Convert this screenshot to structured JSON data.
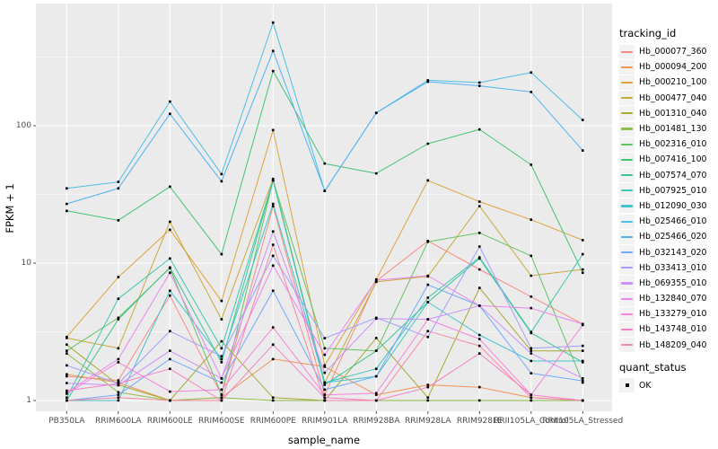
{
  "figure": {
    "background": "#FFFFFF",
    "panel_background": "#EBEBEB",
    "grid_color": "#FFFFFF",
    "tick_color": "#333333",
    "tick_label_color": "#4D4D4D",
    "point_color": "#000000",
    "legend_key_background": "#F2F2F2"
  },
  "chart_data": {
    "type": "line",
    "title": "",
    "xlabel": "sample_name",
    "ylabel": "FPKM + 1",
    "y_scale": "log10",
    "ylim": [
      0.85,
      760
    ],
    "y_ticks": [
      {
        "label": "1",
        "value": 1
      },
      {
        "label": "10",
        "value": 10
      },
      {
        "label": "100",
        "value": 100
      }
    ],
    "y_minor_values": [
      3.1623,
      31.623,
      316.23
    ],
    "grid": true,
    "legend_position": "right",
    "categories": [
      "PB350LA",
      "RRIM600LA",
      "RRIM600LE",
      "RRIM600SE",
      "RRIM600PE",
      "RRIM901LA",
      "RRIM928BA",
      "RRIM928LA",
      "RRIM928LE",
      "RRII105LA_Control",
      "RRII105LA_Stressed"
    ],
    "series": [
      {
        "name": "Hb_000077_360",
        "color": "#F88C84",
        "values": [
          1.5,
          1.4,
          5.8,
          1.1,
          26,
          1.1,
          7.4,
          14.5,
          9.0,
          5.7,
          3.6
        ]
      },
      {
        "name": "Hb_000094_200",
        "color": "#F09456",
        "values": [
          1.55,
          1.35,
          1.0,
          1.05,
          2.0,
          1.76,
          1.1,
          1.3,
          1.25,
          1.05,
          1.0
        ]
      },
      {
        "name": "Hb_000210_100",
        "color": "#DFA23E",
        "values": [
          2.9,
          7.9,
          17.5,
          5.3,
          93,
          1.8,
          7.6,
          40,
          28,
          20.7,
          14.7
        ]
      },
      {
        "name": "Hb_000477_040",
        "color": "#C8A93C",
        "values": [
          2.85,
          2.4,
          20,
          3.9,
          41,
          1.35,
          7.3,
          8.0,
          26,
          8.1,
          9.0
        ]
      },
      {
        "name": "Hb_001310_040",
        "color": "#A8A832",
        "values": [
          2.55,
          1.3,
          1.0,
          2.7,
          1.05,
          1.0,
          2.85,
          1.05,
          6.6,
          2.3,
          2.3
        ]
      },
      {
        "name": "Hb_001481_130",
        "color": "#8EBE49",
        "values": [
          2.2,
          1.15,
          1.0,
          1.05,
          1.0,
          1.0,
          1.0,
          1.0,
          1.0,
          1.0,
          1.0
        ]
      },
      {
        "name": "Hb_002316_010",
        "color": "#63C363",
        "values": [
          2.3,
          4.0,
          9.2,
          1.1,
          40,
          2.4,
          2.3,
          14.3,
          16.6,
          11.3,
          1.35
        ]
      },
      {
        "name": "Hb_007416_100",
        "color": "#42C373",
        "values": [
          24,
          20.5,
          36,
          11.6,
          250,
          53,
          45,
          74,
          94,
          52,
          8.5
        ]
      },
      {
        "name": "Hb_007574_070",
        "color": "#3BC492",
        "values": [
          1.0,
          3.9,
          9.3,
          1.9,
          40,
          1.3,
          2.3,
          5.2,
          10.8,
          3.1,
          1.9
        ]
      },
      {
        "name": "Hb_007925_010",
        "color": "#3DC6B2",
        "values": [
          1.05,
          5.5,
          10.8,
          2.4,
          40,
          1.35,
          1.7,
          5.6,
          11.0,
          3.15,
          11.6
        ]
      },
      {
        "name": "Hb_012090_030",
        "color": "#43C4CC",
        "values": [
          1.0,
          1.0,
          6.3,
          2.0,
          27,
          1.35,
          1.5,
          5.2,
          3.0,
          1.94,
          1.94
        ]
      },
      {
        "name": "Hb_025466_010",
        "color": "#4FBEE4",
        "values": [
          35,
          39,
          150,
          44.5,
          563,
          33.5,
          124,
          214,
          206,
          244,
          110
        ]
      },
      {
        "name": "Hb_025466_020",
        "color": "#52B2F4",
        "values": [
          27,
          35,
          122,
          39.4,
          350,
          33.5,
          124,
          209,
          195,
          176,
          66
        ]
      },
      {
        "name": "Hb_032143_020",
        "color": "#6FA9FA",
        "values": [
          1.0,
          1.1,
          2.0,
          1.35,
          6.3,
          1.2,
          1.5,
          6.95,
          4.9,
          1.58,
          1.39
        ]
      },
      {
        "name": "Hb_033413_010",
        "color": "#A29EFA",
        "values": [
          1.8,
          1.33,
          3.2,
          2.1,
          11.3,
          2.84,
          4.0,
          2.9,
          13.2,
          2.4,
          2.5
        ]
      },
      {
        "name": "Hb_069355_010",
        "color": "#CD8FF8",
        "values": [
          1.34,
          1.29,
          2.3,
          1.45,
          17,
          1.59,
          3.95,
          3.9,
          4.9,
          2.2,
          1.45
        ]
      },
      {
        "name": "Hb_132840_070",
        "color": "#E985F0",
        "values": [
          1.15,
          2.0,
          8.5,
          1.45,
          9.6,
          2.15,
          7.5,
          8.1,
          4.9,
          4.7,
          3.6
        ]
      },
      {
        "name": "Hb_133279_010",
        "color": "#F781DF",
        "values": [
          1.12,
          1.9,
          1.16,
          1.2,
          3.4,
          1.1,
          1.13,
          3.9,
          2.8,
          1.1,
          3.55
        ]
      },
      {
        "name": "Hb_143748_010",
        "color": "#F87FC4",
        "values": [
          1.18,
          1.33,
          1.7,
          1.0,
          2.55,
          1.05,
          1.0,
          1.25,
          2.2,
          1.1,
          1.0
        ]
      },
      {
        "name": "Hb_148209_040",
        "color": "#F886A6",
        "values": [
          1.0,
          1.05,
          1.0,
          1.0,
          13.6,
          1.0,
          1.0,
          3.2,
          2.5,
          1.05,
          1.0
        ]
      }
    ],
    "legend": {
      "color_title": "tracking_id",
      "shape_title": "quant_status",
      "shape_items": [
        "OK"
      ]
    }
  }
}
